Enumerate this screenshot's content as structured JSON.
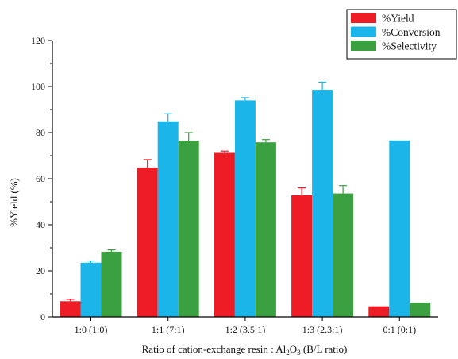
{
  "chart_data": {
    "type": "bar",
    "title": "",
    "xlabel": "Ratio of cation-exchange resin : Al₂O₃ (B/L ratio)",
    "xlabel_parts": {
      "before": "Ratio of cation-exchange resin : Al",
      "sub1": "2",
      "mid": "O",
      "sub2": "3",
      "after": " (B/L ratio)"
    },
    "ylabel": "%Yield (%)",
    "ylim": [
      0,
      120
    ],
    "yticks": [
      0,
      20,
      40,
      60,
      80,
      100,
      120
    ],
    "grid": false,
    "legend_position": "top-right",
    "categories": [
      "1:0 (1:0)",
      "1:1 (7:1)",
      "1:2 (3.5:1)",
      "1:3 (2.3:1)",
      "0:1 (0:1)"
    ],
    "series": [
      {
        "name": "%Yield",
        "color": "#ee1c25",
        "values": [
          6.8,
          64.8,
          71.2,
          52.8,
          4.6
        ],
        "errors": [
          0.8,
          3.5,
          0.8,
          3.2,
          0.0
        ]
      },
      {
        "name": "%Conversion",
        "color": "#1cb5ea",
        "values": [
          23.5,
          84.9,
          94.0,
          98.6,
          76.6
        ],
        "errors": [
          0.8,
          3.3,
          1.2,
          3.3,
          0.0
        ]
      },
      {
        "name": "%Selectivity",
        "color": "#3aa040",
        "values": [
          28.3,
          76.5,
          75.8,
          53.6,
          6.2
        ],
        "errors": [
          0.8,
          3.5,
          1.2,
          3.4,
          0.0
        ]
      }
    ]
  }
}
